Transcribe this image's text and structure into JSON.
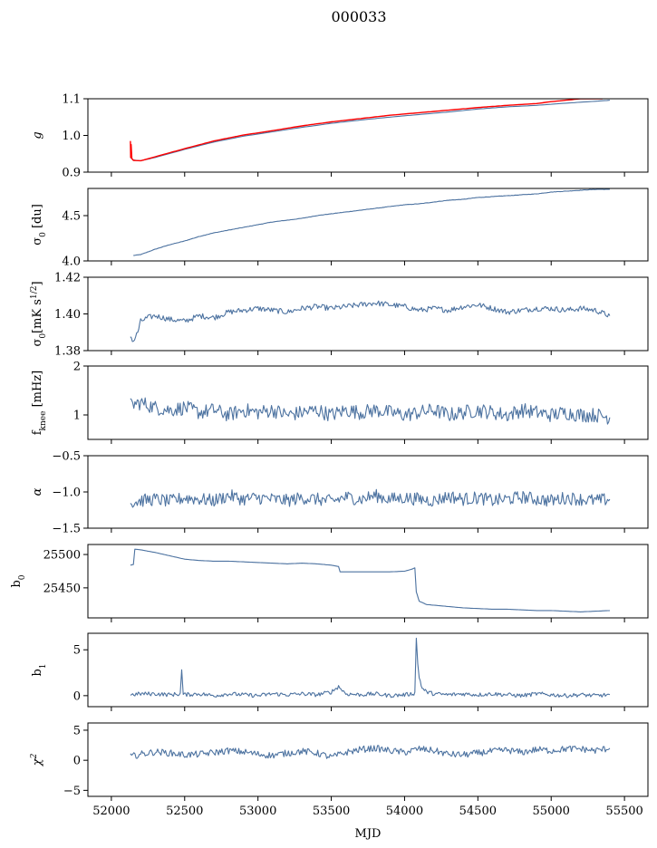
{
  "title": "000033",
  "xlabel": "MJD",
  "x_ticks": [
    52000,
    52500,
    53000,
    53500,
    54000,
    54500,
    55000,
    55500
  ],
  "x_tick_labels": [
    "52000",
    "52500",
    "53000",
    "53500",
    "54000",
    "54500",
    "55000",
    "55500"
  ],
  "chart_data": [
    {
      "type": "line",
      "ylabel": "g",
      "xlim": [
        51840,
        55660
      ],
      "ylim": [
        0.9,
        1.1
      ],
      "yticks": [
        0.9,
        1.0,
        1.1
      ],
      "ytick_labels": [
        "0.9",
        "1.0",
        "1.1"
      ],
      "colors": [
        "#4c72a0",
        "#ff0000"
      ],
      "series": [
        {
          "x": [
            52130,
            52150,
            52200,
            52300,
            52500,
            52700,
            52900,
            53100,
            53300,
            53500,
            53700,
            53900,
            54100,
            54300,
            54500,
            54700,
            54900,
            55100,
            55300,
            55400
          ],
          "y": [
            0.94,
            0.933,
            0.931,
            0.94,
            0.962,
            0.982,
            0.998,
            1.01,
            1.022,
            1.033,
            1.042,
            1.05,
            1.057,
            1.064,
            1.072,
            1.078,
            1.082,
            1.088,
            1.093,
            1.096
          ]
        },
        {
          "x": [
            52130,
            52132,
            52135,
            52140,
            52150,
            52200,
            52300,
            52500,
            52700,
            52900,
            53100,
            53300,
            53500,
            53700,
            53900,
            54100,
            54300,
            54500,
            54700,
            54900,
            55000,
            55100,
            55200,
            55300,
            55350
          ],
          "y": [
            0.985,
            0.94,
            0.975,
            0.937,
            0.932,
            0.931,
            0.942,
            0.964,
            0.985,
            1.001,
            1.013,
            1.026,
            1.037,
            1.046,
            1.055,
            1.062,
            1.069,
            1.076,
            1.082,
            1.087,
            1.092,
            1.096,
            1.1,
            1.1,
            1.1
          ]
        }
      ]
    },
    {
      "type": "line",
      "ylabel": "σ0 [du]",
      "xlim": [
        51840,
        55660
      ],
      "ylim": [
        4.0,
        4.8
      ],
      "yticks": [
        4.0,
        4.5
      ],
      "ytick_labels": [
        "4.0",
        "4.5"
      ],
      "color": "#4c72a0",
      "x": [
        52150,
        52200,
        52300,
        52400,
        52500,
        52600,
        52700,
        52800,
        52900,
        53000,
        53100,
        53200,
        53300,
        53400,
        53500,
        53600,
        53700,
        53800,
        53900,
        54000,
        54100,
        54200,
        54300,
        54400,
        54500,
        54600,
        54700,
        54800,
        54900,
        55000,
        55100,
        55200,
        55300,
        55400
      ],
      "y": [
        4.06,
        4.07,
        4.13,
        4.18,
        4.22,
        4.27,
        4.31,
        4.34,
        4.37,
        4.4,
        4.43,
        4.45,
        4.47,
        4.5,
        4.52,
        4.54,
        4.56,
        4.58,
        4.6,
        4.62,
        4.63,
        4.65,
        4.67,
        4.68,
        4.7,
        4.71,
        4.72,
        4.73,
        4.74,
        4.76,
        4.77,
        4.78,
        4.79,
        4.79
      ]
    },
    {
      "type": "line",
      "ylabel": "σ0[mK s1/2]",
      "xlim": [
        51840,
        55660
      ],
      "ylim": [
        1.38,
        1.42
      ],
      "yticks": [
        1.38,
        1.4,
        1.42
      ],
      "ytick_labels": [
        "1.38",
        "1.40",
        "1.42"
      ],
      "color": "#4c72a0",
      "x": [
        52130,
        52150,
        52180,
        52200,
        52250,
        52300,
        52400,
        52500,
        52600,
        52700,
        52800,
        52900,
        53000,
        53100,
        53200,
        53300,
        53400,
        53500,
        53600,
        53700,
        53800,
        53900,
        54000,
        54100,
        54200,
        54300,
        54400,
        54500,
        54600,
        54700,
        54800,
        54900,
        55000,
        55100,
        55200,
        55300,
        55400
      ],
      "y": [
        1.388,
        1.385,
        1.39,
        1.396,
        1.398,
        1.399,
        1.397,
        1.396,
        1.399,
        1.398,
        1.401,
        1.402,
        1.403,
        1.402,
        1.401,
        1.403,
        1.404,
        1.403,
        1.404,
        1.405,
        1.406,
        1.405,
        1.404,
        1.402,
        1.403,
        1.402,
        1.404,
        1.405,
        1.403,
        1.401,
        1.402,
        1.403,
        1.403,
        1.402,
        1.403,
        1.402,
        1.399
      ]
    },
    {
      "type": "line",
      "ylabel": "fknee [mHz]",
      "xlim": [
        51840,
        55660
      ],
      "ylim": [
        0.5,
        2.0
      ],
      "yticks": [
        1,
        2
      ],
      "ytick_labels": [
        "1",
        "2"
      ],
      "color": "#4c72a0",
      "x": [
        52130,
        52200,
        52300,
        52400,
        52500,
        52600,
        52700,
        52800,
        52900,
        53000,
        53100,
        53200,
        53300,
        53400,
        53500,
        53600,
        53700,
        53800,
        53900,
        54000,
        54100,
        54200,
        54300,
        54400,
        54500,
        54600,
        54700,
        54800,
        54900,
        55000,
        55100,
        55200,
        55300,
        55400
      ],
      "y": [
        1.2,
        1.25,
        1.15,
        1.1,
        1.15,
        1.05,
        1.1,
        1.0,
        1.1,
        1.05,
        1.1,
        1.0,
        1.05,
        1.1,
        1.0,
        1.1,
        1.05,
        1.1,
        1.05,
        1.0,
        1.05,
        1.1,
        1.0,
        1.05,
        1.1,
        1.05,
        1.0,
        1.1,
        1.05,
        1.0,
        1.05,
        1.0,
        1.0,
        0.95
      ]
    },
    {
      "type": "line",
      "ylabel": "α",
      "xlim": [
        51840,
        55660
      ],
      "ylim": [
        -1.5,
        -0.5
      ],
      "yticks": [
        -1.5,
        -1.0,
        -0.5
      ],
      "ytick_labels": [
        "−1.5",
        "−1.0",
        "−0.5"
      ],
      "color": "#4c72a0",
      "x": [
        52130,
        52200,
        52300,
        52400,
        52500,
        52600,
        52700,
        52800,
        52900,
        53000,
        53100,
        53200,
        53300,
        53400,
        53500,
        53600,
        53700,
        53800,
        53900,
        54000,
        54100,
        54200,
        54300,
        54400,
        54500,
        54600,
        54700,
        54800,
        54900,
        55000,
        55100,
        55200,
        55300,
        55400
      ],
      "y": [
        -1.15,
        -1.12,
        -1.1,
        -1.13,
        -1.08,
        -1.1,
        -1.12,
        -1.05,
        -1.1,
        -1.08,
        -1.1,
        -1.12,
        -1.08,
        -1.1,
        -1.13,
        -1.07,
        -1.1,
        -1.05,
        -1.1,
        -1.08,
        -1.1,
        -1.12,
        -1.06,
        -1.1,
        -1.08,
        -1.12,
        -1.1,
        -1.07,
        -1.1,
        -1.12,
        -1.08,
        -1.1,
        -1.12,
        -1.1
      ]
    },
    {
      "type": "line",
      "ylabel": "b0",
      "xlim": [
        51840,
        55660
      ],
      "ylim": [
        25405,
        25515
      ],
      "yticks": [
        25450,
        25500
      ],
      "ytick_labels": [
        "25450",
        "25500"
      ],
      "color": "#4c72a0",
      "x": [
        52130,
        52150,
        52160,
        52200,
        52300,
        52400,
        52500,
        52600,
        52700,
        52800,
        52900,
        53000,
        53100,
        53200,
        53300,
        53400,
        53500,
        53550,
        53560,
        53600,
        53800,
        53900,
        54000,
        54050,
        54070,
        54080,
        54100,
        54150,
        54200,
        54300,
        54400,
        54500,
        54600,
        54700,
        54800,
        54900,
        55000,
        55100,
        55200,
        55300,
        55400
      ],
      "y": [
        25484,
        25485,
        25508,
        25507,
        25503,
        25498,
        25493,
        25491,
        25490,
        25490,
        25489,
        25488,
        25487,
        25486,
        25487,
        25486,
        25484,
        25482,
        25474,
        25474,
        25474,
        25474,
        25475,
        25478,
        25480,
        25444,
        25430,
        25425,
        25424,
        25422,
        25420,
        25419,
        25418,
        25418,
        25417,
        25416,
        25416,
        25415,
        25414,
        25415,
        25416
      ]
    },
    {
      "type": "line",
      "ylabel": "b1",
      "xlim": [
        51840,
        55660
      ],
      "ylim": [
        -1.2,
        6.8
      ],
      "yticks": [
        0,
        5
      ],
      "ytick_labels": [
        "0",
        "5"
      ],
      "color": "#4c72a0",
      "x": [
        52130,
        52200,
        52300,
        52400,
        52470,
        52480,
        52490,
        52600,
        52700,
        52800,
        52900,
        53000,
        53100,
        53200,
        53300,
        53400,
        53500,
        53550,
        53600,
        53700,
        53800,
        53900,
        54000,
        54050,
        54070,
        54080,
        54090,
        54100,
        54120,
        54150,
        54200,
        54300,
        54400,
        54500,
        54600,
        54700,
        54800,
        54900,
        55000,
        55100,
        55200,
        55300,
        55400
      ],
      "y": [
        0.1,
        0.2,
        0.2,
        0.1,
        0.2,
        2.8,
        0.1,
        0.2,
        0.0,
        0.2,
        0.1,
        0.0,
        0.2,
        0.1,
        0.2,
        0.1,
        0.4,
        1.0,
        0.2,
        0.1,
        0.2,
        0.0,
        0.1,
        0.2,
        0.3,
        6.2,
        3.5,
        2.0,
        0.8,
        0.4,
        0.2,
        0.1,
        0.2,
        0.1,
        0.2,
        0.1,
        0.0,
        0.2,
        0.1,
        0.0,
        0.1,
        0.0,
        0.1
      ]
    },
    {
      "type": "line",
      "ylabel": "χ2",
      "xlim": [
        51840,
        55660
      ],
      "ylim": [
        -6.0,
        6.2
      ],
      "yticks": [
        -5,
        0,
        5
      ],
      "ytick_labels": [
        "−5",
        "0",
        "5"
      ],
      "color": "#4c72a0",
      "x": [
        52130,
        52200,
        52300,
        52400,
        52500,
        52600,
        52700,
        52800,
        52900,
        53000,
        53100,
        53200,
        53300,
        53400,
        53500,
        53600,
        53700,
        53800,
        53900,
        54000,
        54100,
        54200,
        54300,
        54400,
        54500,
        54600,
        54700,
        54800,
        54900,
        55000,
        55100,
        55200,
        55300,
        55400
      ],
      "y": [
        0.6,
        1.0,
        1.4,
        1.2,
        0.9,
        1.0,
        1.3,
        1.6,
        1.4,
        1.0,
        0.8,
        1.2,
        1.5,
        1.2,
        0.5,
        1.3,
        1.8,
        2.0,
        1.6,
        1.3,
        1.9,
        1.6,
        1.0,
        0.9,
        1.2,
        1.5,
        1.7,
        1.3,
        1.8,
        1.6,
        1.9,
        1.9,
        1.6,
        2.0
      ]
    }
  ]
}
